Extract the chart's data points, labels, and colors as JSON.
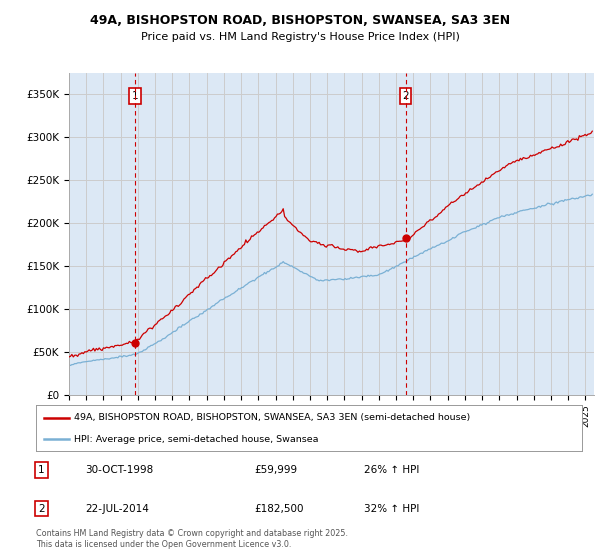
{
  "title_line1": "49A, BISHOPSTON ROAD, BISHOPSTON, SWANSEA, SA3 3EN",
  "title_line2": "Price paid vs. HM Land Registry's House Price Index (HPI)",
  "ylabel_ticks": [
    "£0",
    "£50K",
    "£100K",
    "£150K",
    "£200K",
    "£250K",
    "£300K",
    "£350K"
  ],
  "ytick_values": [
    0,
    50000,
    100000,
    150000,
    200000,
    250000,
    300000,
    350000
  ],
  "ylim": [
    0,
    375000
  ],
  "xlim_start": 1995.0,
  "xlim_end": 2025.5,
  "red_color": "#cc0000",
  "blue_color": "#7ab0d4",
  "vline_color": "#cc0000",
  "grid_color": "#cccccc",
  "plot_bg_color": "#dce8f5",
  "background_color": "#ffffff",
  "purchase1_x": 1998.83,
  "purchase1_price": 59999,
  "purchase2_x": 2014.55,
  "purchase2_price": 182500,
  "legend_line1": "49A, BISHOPSTON ROAD, BISHOPSTON, SWANSEA, SA3 3EN (semi-detached house)",
  "legend_line2": "HPI: Average price, semi-detached house, Swansea",
  "note1_label": "1",
  "note1_date": "30-OCT-1998",
  "note1_price": "£59,999",
  "note1_hpi": "26% ↑ HPI",
  "note2_label": "2",
  "note2_date": "22-JUL-2014",
  "note2_price": "£182,500",
  "note2_hpi": "32% ↑ HPI",
  "copyright_text": "Contains HM Land Registry data © Crown copyright and database right 2025.\nThis data is licensed under the Open Government Licence v3.0."
}
